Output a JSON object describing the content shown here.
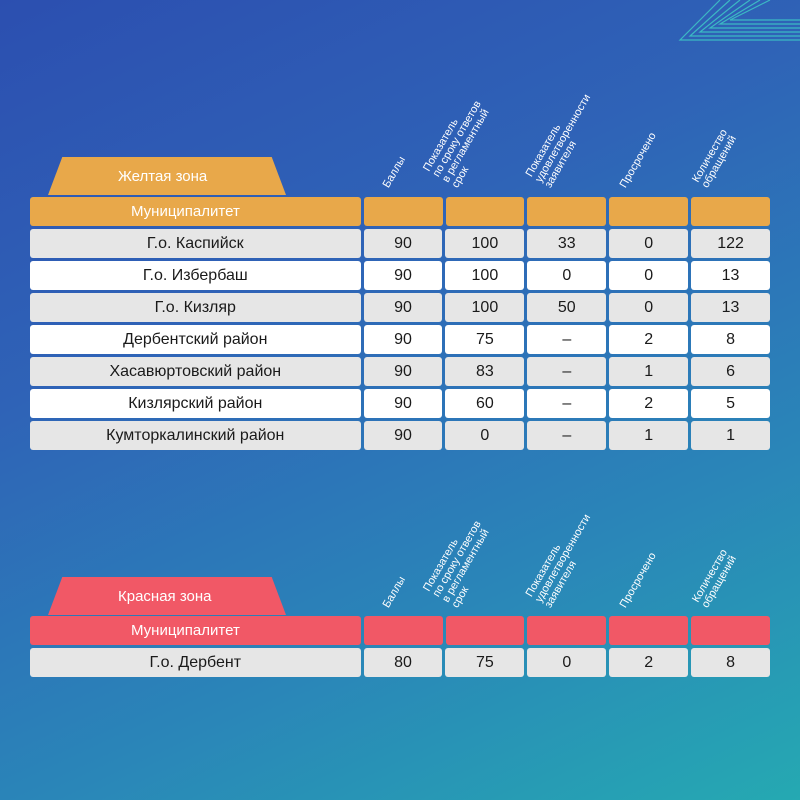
{
  "columns": {
    "municipality": "Муниципалитет",
    "scores": "Баллы",
    "timeliness": [
      "Показатель",
      "по сроку ответов",
      "в регламентный",
      "срок"
    ],
    "satisfaction": [
      "Показатель",
      "удовлетворенности",
      "заявителя"
    ],
    "overdue": "Просрочено",
    "requests": [
      "Количество",
      "обращений"
    ]
  },
  "yellow_zone": {
    "label": "Желтая зона",
    "color": "#e8a84a",
    "rows": [
      {
        "name": "Г.о. Каспийск",
        "scores": "90",
        "timeliness": "100",
        "satisfaction": "33",
        "overdue": "0",
        "requests": "122"
      },
      {
        "name": "Г.о. Избербаш",
        "scores": "90",
        "timeliness": "100",
        "satisfaction": "0",
        "overdue": "0",
        "requests": "13"
      },
      {
        "name": "Г.о. Кизляр",
        "scores": "90",
        "timeliness": "100",
        "satisfaction": "50",
        "overdue": "0",
        "requests": "13"
      },
      {
        "name": "Дербентский район",
        "scores": "90",
        "timeliness": "75",
        "satisfaction": "–",
        "overdue": "2",
        "requests": "8"
      },
      {
        "name": "Хасавюртовский район",
        "scores": "90",
        "timeliness": "83",
        "satisfaction": "–",
        "overdue": "1",
        "requests": "6"
      },
      {
        "name": "Кизлярский район",
        "scores": "90",
        "timeliness": "60",
        "satisfaction": "–",
        "overdue": "2",
        "requests": "5"
      },
      {
        "name": "Кумторкалинский район",
        "scores": "90",
        "timeliness": "0",
        "satisfaction": "–",
        "overdue": "1",
        "requests": "1"
      }
    ]
  },
  "red_zone": {
    "label": "Красная зона",
    "color": "#f15866",
    "rows": [
      {
        "name": "Г.о. Дербент",
        "scores": "80",
        "timeliness": "75",
        "satisfaction": "0",
        "overdue": "2",
        "requests": "8"
      }
    ]
  }
}
